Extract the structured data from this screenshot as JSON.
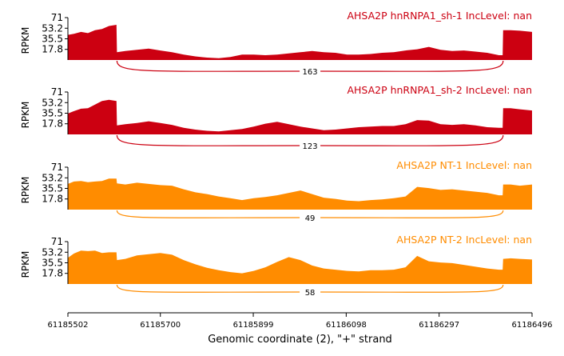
{
  "chart_data": {
    "type": "area",
    "subtype": "sashimi",
    "x_range": [
      61185502,
      61186496
    ],
    "x_ticks": [
      "61185502",
      "61185700",
      "61185899",
      "61186098",
      "61186297",
      "61186496"
    ],
    "x_tick_values": [
      61185502,
      61185700,
      61185899,
      61186098,
      61186297,
      61186496
    ],
    "xlabel": "Genomic coordinate (2), \"+\" strand",
    "ylabel": "RPKM",
    "y_ticks": [
      "71",
      "53.2",
      "35.5",
      "17.8"
    ],
    "y_tick_values": [
      71,
      53.2,
      35.5,
      17.8
    ],
    "ylim": [
      0,
      71
    ],
    "tracks": [
      {
        "title": "AHSA2P hnRNPA1_sh-1 IncLevel: nan",
        "color": "#cc0011",
        "junction": {
          "start": 61185607,
          "end": 61186434,
          "count": "163"
        },
        "coverage": [
          [
            61185502,
            42
          ],
          [
            61185515,
            44
          ],
          [
            61185530,
            47
          ],
          [
            61185545,
            45
          ],
          [
            61185560,
            50
          ],
          [
            61185575,
            52
          ],
          [
            61185590,
            57
          ],
          [
            61185606,
            59
          ],
          [
            61185607,
            13
          ],
          [
            61185625,
            15
          ],
          [
            61185650,
            17
          ],
          [
            61185675,
            19
          ],
          [
            61185700,
            16
          ],
          [
            61185725,
            13
          ],
          [
            61185750,
            9
          ],
          [
            61185775,
            6
          ],
          [
            61185800,
            4
          ],
          [
            61185825,
            3
          ],
          [
            61185850,
            5
          ],
          [
            61185875,
            9
          ],
          [
            61185900,
            9
          ],
          [
            61185925,
            8
          ],
          [
            61185950,
            9
          ],
          [
            61185975,
            11
          ],
          [
            61186000,
            13
          ],
          [
            61186025,
            15
          ],
          [
            61186050,
            13
          ],
          [
            61186075,
            12
          ],
          [
            61186100,
            9
          ],
          [
            61186125,
            9
          ],
          [
            61186150,
            10
          ],
          [
            61186175,
            12
          ],
          [
            61186200,
            13
          ],
          [
            61186225,
            16
          ],
          [
            61186250,
            18
          ],
          [
            61186275,
            22
          ],
          [
            61186300,
            17
          ],
          [
            61186325,
            15
          ],
          [
            61186350,
            16
          ],
          [
            61186375,
            14
          ],
          [
            61186400,
            12
          ],
          [
            61186425,
            8
          ],
          [
            61186433,
            8
          ],
          [
            61186434,
            50
          ],
          [
            61186450,
            50
          ],
          [
            61186470,
            49
          ],
          [
            61186496,
            47
          ]
        ]
      },
      {
        "title": "AHSA2P hnRNPA1_sh-2 IncLevel: nan",
        "color": "#cc0011",
        "junction": {
          "start": 61185607,
          "end": 61186434,
          "count": "123"
        },
        "coverage": [
          [
            61185502,
            35
          ],
          [
            61185515,
            39
          ],
          [
            61185530,
            43
          ],
          [
            61185545,
            44
          ],
          [
            61185560,
            50
          ],
          [
            61185575,
            56
          ],
          [
            61185590,
            58
          ],
          [
            61185606,
            56
          ],
          [
            61185607,
            15
          ],
          [
            61185625,
            17
          ],
          [
            61185650,
            19
          ],
          [
            61185675,
            22
          ],
          [
            61185700,
            19
          ],
          [
            61185725,
            16
          ],
          [
            61185750,
            11
          ],
          [
            61185775,
            8
          ],
          [
            61185800,
            6
          ],
          [
            61185825,
            5
          ],
          [
            61185850,
            7
          ],
          [
            61185875,
            9
          ],
          [
            61185900,
            13
          ],
          [
            61185925,
            18
          ],
          [
            61185950,
            21
          ],
          [
            61185975,
            17
          ],
          [
            61186000,
            13
          ],
          [
            61186025,
            10
          ],
          [
            61186050,
            7
          ],
          [
            61186075,
            8
          ],
          [
            61186100,
            10
          ],
          [
            61186125,
            12
          ],
          [
            61186150,
            13
          ],
          [
            61186175,
            14
          ],
          [
            61186200,
            14
          ],
          [
            61186225,
            17
          ],
          [
            61186250,
            24
          ],
          [
            61186275,
            23
          ],
          [
            61186300,
            17
          ],
          [
            61186325,
            16
          ],
          [
            61186350,
            17
          ],
          [
            61186375,
            15
          ],
          [
            61186400,
            12
          ],
          [
            61186425,
            11
          ],
          [
            61186433,
            11
          ],
          [
            61186434,
            44
          ],
          [
            61186450,
            44
          ],
          [
            61186470,
            42
          ],
          [
            61186496,
            40
          ]
        ]
      },
      {
        "title": "AHSA2P NT-1 IncLevel: nan",
        "color": "#ff8c00",
        "junction": {
          "start": 61185607,
          "end": 61186434,
          "count": "49"
        },
        "coverage": [
          [
            61185502,
            43
          ],
          [
            61185515,
            47
          ],
          [
            61185530,
            48
          ],
          [
            61185545,
            46
          ],
          [
            61185560,
            47
          ],
          [
            61185575,
            48
          ],
          [
            61185590,
            52
          ],
          [
            61185606,
            52
          ],
          [
            61185607,
            44
          ],
          [
            61185625,
            42
          ],
          [
            61185650,
            45
          ],
          [
            61185675,
            43
          ],
          [
            61185700,
            41
          ],
          [
            61185725,
            40
          ],
          [
            61185750,
            34
          ],
          [
            61185775,
            29
          ],
          [
            61185800,
            26
          ],
          [
            61185825,
            22
          ],
          [
            61185850,
            19
          ],
          [
            61185875,
            16
          ],
          [
            61185900,
            19
          ],
          [
            61185925,
            21
          ],
          [
            61185950,
            24
          ],
          [
            61185975,
            28
          ],
          [
            61186000,
            32
          ],
          [
            61186025,
            26
          ],
          [
            61186050,
            20
          ],
          [
            61186075,
            18
          ],
          [
            61186100,
            15
          ],
          [
            61186125,
            14
          ],
          [
            61186150,
            16
          ],
          [
            61186175,
            17
          ],
          [
            61186200,
            19
          ],
          [
            61186225,
            22
          ],
          [
            61186250,
            38
          ],
          [
            61186275,
            36
          ],
          [
            61186300,
            33
          ],
          [
            61186325,
            34
          ],
          [
            61186350,
            32
          ],
          [
            61186375,
            30
          ],
          [
            61186400,
            28
          ],
          [
            61186425,
            24
          ],
          [
            61186433,
            24
          ],
          [
            61186434,
            42
          ],
          [
            61186450,
            42
          ],
          [
            61186470,
            40
          ],
          [
            61186496,
            42
          ]
        ]
      },
      {
        "title": "AHSA2P NT-2 IncLevel: nan",
        "color": "#ff8c00",
        "junction": {
          "start": 61185607,
          "end": 61186434,
          "count": "58"
        },
        "coverage": [
          [
            61185502,
            44
          ],
          [
            61185515,
            51
          ],
          [
            61185530,
            56
          ],
          [
            61185545,
            55
          ],
          [
            61185560,
            56
          ],
          [
            61185575,
            52
          ],
          [
            61185590,
            53
          ],
          [
            61185606,
            53
          ],
          [
            61185607,
            40
          ],
          [
            61185625,
            42
          ],
          [
            61185650,
            48
          ],
          [
            61185675,
            50
          ],
          [
            61185700,
            52
          ],
          [
            61185725,
            49
          ],
          [
            61185750,
            40
          ],
          [
            61185775,
            33
          ],
          [
            61185800,
            27
          ],
          [
            61185825,
            23
          ],
          [
            61185850,
            20
          ],
          [
            61185875,
            18
          ],
          [
            61185900,
            22
          ],
          [
            61185925,
            28
          ],
          [
            61185950,
            37
          ],
          [
            61185975,
            45
          ],
          [
            61186000,
            40
          ],
          [
            61186025,
            31
          ],
          [
            61186050,
            26
          ],
          [
            61186075,
            24
          ],
          [
            61186100,
            22
          ],
          [
            61186125,
            21
          ],
          [
            61186150,
            23
          ],
          [
            61186175,
            23
          ],
          [
            61186200,
            24
          ],
          [
            61186225,
            28
          ],
          [
            61186250,
            47
          ],
          [
            61186275,
            38
          ],
          [
            61186300,
            36
          ],
          [
            61186325,
            35
          ],
          [
            61186350,
            32
          ],
          [
            61186375,
            29
          ],
          [
            61186400,
            26
          ],
          [
            61186425,
            24
          ],
          [
            61186433,
            24
          ],
          [
            61186434,
            42
          ],
          [
            61186450,
            43
          ],
          [
            61186470,
            42
          ],
          [
            61186496,
            41
          ]
        ]
      }
    ]
  }
}
